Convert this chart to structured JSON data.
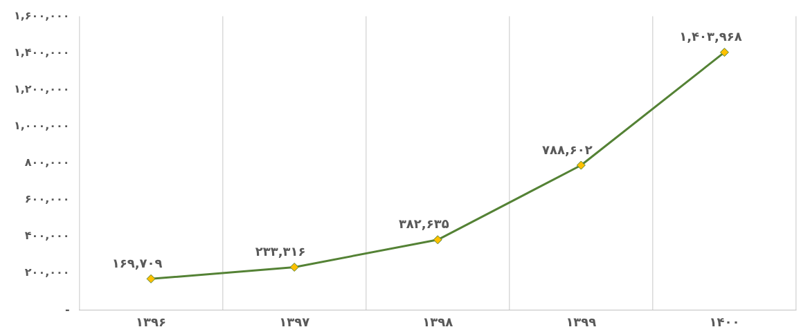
{
  "chart_data": {
    "type": "line",
    "categories": [
      "۱۳۹۶",
      "۱۳۹۷",
      "۱۳۹۸",
      "۱۳۹۹",
      "۱۴۰۰"
    ],
    "series": [
      {
        "color": "#548235",
        "values": [
          169709,
          233316,
          382635,
          788602,
          1403968
        ],
        "value_labels": [
          "۱۶۹,۷۰۹",
          "۲۳۳,۳۱۶",
          "۳۸۲,۶۳۵",
          "۷۸۸,۶۰۲",
          "۱,۴۰۳,۹۶۸"
        ]
      }
    ],
    "ylim": [
      0,
      1600000
    ],
    "yticks": [
      {
        "value": 0,
        "label": "-"
      },
      {
        "value": 200000,
        "label": "۲۰۰,۰۰۰"
      },
      {
        "value": 400000,
        "label": "۴۰۰,۰۰۰"
      },
      {
        "value": 600000,
        "label": "۶۰۰,۰۰۰"
      },
      {
        "value": 800000,
        "label": "۸۰۰,۰۰۰"
      },
      {
        "value": 1000000,
        "label": "۱,۰۰۰,۰۰۰"
      },
      {
        "value": 1200000,
        "label": "۱,۲۰۰,۰۰۰"
      },
      {
        "value": 1400000,
        "label": "۱,۴۰۰,۰۰۰"
      },
      {
        "value": 1600000,
        "label": "۱,۶۰۰,۰۰۰"
      }
    ],
    "grid": "x",
    "marker": "diamond",
    "line_style": "solid",
    "legend": false
  }
}
